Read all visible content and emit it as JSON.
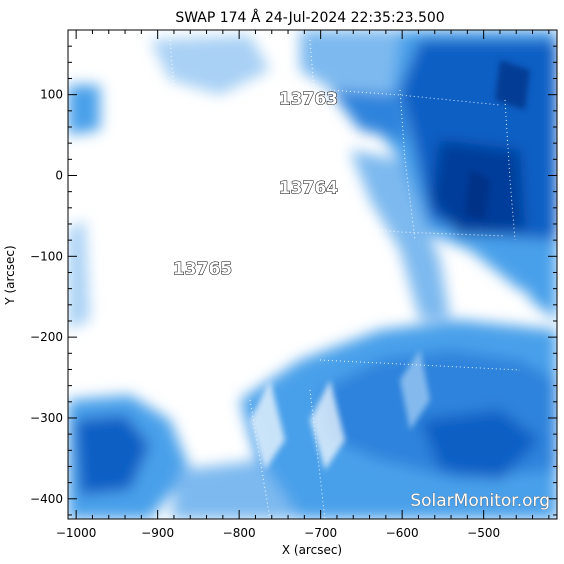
{
  "title": "SWAP 174 Å 24-Jul-2024 22:35:23.500",
  "axes": {
    "xlabel": "X (arcsec)",
    "ylabel": "Y (arcsec)",
    "xlim": [
      -1010,
      -410
    ],
    "ylim": [
      -425,
      180
    ],
    "x_ticks": [
      -1000,
      -900,
      -800,
      -700,
      -600,
      -500
    ],
    "x_tick_labels": [
      "−1000",
      "−900",
      "−800",
      "−700",
      "−600",
      "−500"
    ],
    "y_ticks": [
      100,
      0,
      -100,
      -200,
      -300,
      -400
    ],
    "y_tick_labels": [
      "100",
      "0",
      "−100",
      "−200",
      "−300",
      "−400"
    ]
  },
  "regions": [
    {
      "label": "13763",
      "x": -715,
      "y": 95
    },
    {
      "label": "13764",
      "x": -715,
      "y": -15
    },
    {
      "label": "13765",
      "x": -845,
      "y": -115
    }
  ],
  "watermark": "SolarMonitor.org",
  "colors": {
    "light": "#ffffff",
    "mid": "#4aa0ea",
    "dark": "#0a5fc4",
    "deep": "#003d9a"
  }
}
